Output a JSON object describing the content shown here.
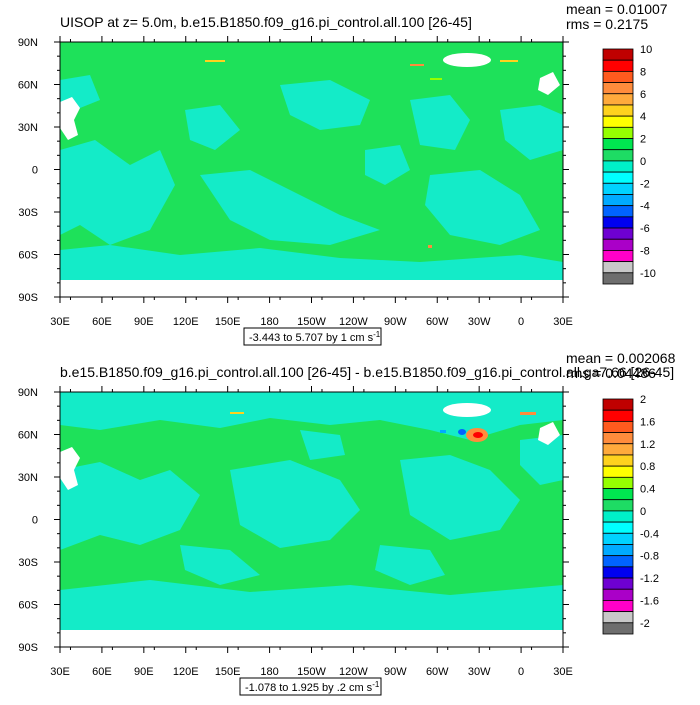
{
  "chart_data": [
    {
      "type": "heatmap",
      "title": "UISOP at z=   5.0m, b.e15.B1850.f09_g16.pi_control.all.100 [26-45]",
      "stats": [
        "mean = 0.01007",
        "rms = 0.2175"
      ],
      "x_ticks": [
        "30E",
        "60E",
        "90E",
        "120E",
        "150E",
        "180",
        "150W",
        "120W",
        "90W",
        "60W",
        "30W",
        "0",
        "30E"
      ],
      "y_ticks": [
        "90N",
        "60N",
        "30N",
        "0",
        "30S",
        "60S",
        "90S"
      ],
      "colorbar_labels": [
        "10",
        "8",
        "6",
        "4",
        "2",
        "0",
        "-2",
        "-4",
        "-6",
        "-8",
        "-10"
      ],
      "range_text": "-3.443 to 5.707 by 1 cm s",
      "range_unit_exp": "-1"
    },
    {
      "type": "heatmap",
      "title": "b.e15.B1850.f09_g16.pi_control.all.100 [26-45] - b.e15.B1850.f09_g16.pi_control.all.ga7.66 [26-45]",
      "stats": [
        "mean = 0.002068",
        "rms = 0.04486"
      ],
      "x_ticks": [
        "30E",
        "60E",
        "90E",
        "120E",
        "150E",
        "180",
        "150W",
        "120W",
        "90W",
        "60W",
        "30W",
        "0",
        "30E"
      ],
      "y_ticks": [
        "90N",
        "60N",
        "30N",
        "0",
        "30S",
        "60S",
        "90S"
      ],
      "colorbar_labels": [
        "2",
        "1.6",
        "1.2",
        "0.8",
        "0.4",
        "0",
        "-0.4",
        "-0.8",
        "-1.2",
        "-1.6",
        "-2"
      ],
      "range_text": "-1.078 to 1.925 by .2 cm s",
      "range_unit_exp": "-1"
    }
  ],
  "colors": {
    "palette": [
      "#c00000",
      "#ff0000",
      "#ff5a1e",
      "#ff8c3c",
      "#ffaa3c",
      "#ffd21e",
      "#ffff00",
      "#96ff00",
      "#00e650",
      "#1edc64",
      "#00f0c8",
      "#00ffff",
      "#00d2ff",
      "#00aaff",
      "#0064ff",
      "#0000f0",
      "#6e00d2",
      "#aa00c8",
      "#ff00c8",
      "#c8c8c8",
      "#6e6e6e"
    ],
    "ocean_main": "#1ee15a",
    "ocean_light": "#14ebc8",
    "land": "#ffffff"
  }
}
